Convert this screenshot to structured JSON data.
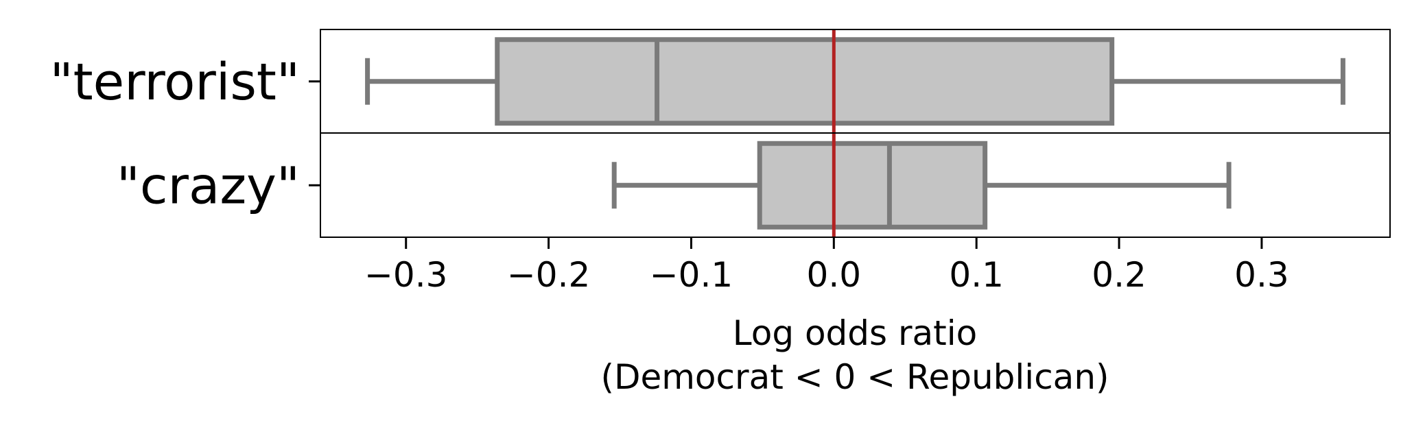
{
  "chart_data": {
    "type": "boxplot",
    "orientation": "horizontal",
    "title": "",
    "xlabel_line1": "Log odds ratio",
    "xlabel_line2": "(Democrat < 0 < Republican)",
    "xlim": [
      -0.36,
      0.39
    ],
    "xticks": [
      -0.3,
      -0.2,
      -0.1,
      0.0,
      0.1,
      0.2,
      0.3
    ],
    "xtick_labels": [
      "−0.3",
      "−0.2",
      "−0.1",
      "0.0",
      "0.1",
      "0.2",
      "0.3"
    ],
    "reference_line": {
      "x": 0.0,
      "color": "#b22222"
    },
    "box_color": "#c4c4c4",
    "line_color": "#7a7a7a",
    "categories": [
      "\"terrorist\"",
      "\"crazy\""
    ],
    "boxes": [
      {
        "label": "\"terrorist\"",
        "whisker_low": -0.327,
        "q1": -0.236,
        "median": -0.124,
        "q3": 0.195,
        "whisker_high": 0.357
      },
      {
        "label": "\"crazy\"",
        "whisker_low": -0.154,
        "q1": -0.052,
        "median": 0.039,
        "q3": 0.106,
        "whisker_high": 0.277
      }
    ]
  }
}
